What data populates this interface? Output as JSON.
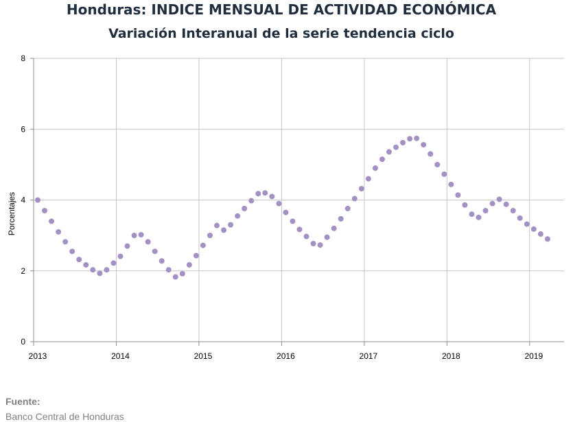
{
  "chart_data": {
    "type": "scatter",
    "title": "Honduras: INDICE MENSUAL DE ACTIVIDAD ECONÓMICA",
    "subtitle": "Variación Interanual de la serie tendencia ciclo",
    "xlabel": "",
    "ylabel": "Porcentajes",
    "x_ticks": [
      "2013",
      "2014",
      "2015",
      "2016",
      "2017",
      "2018",
      "2019"
    ],
    "y_ticks": [
      "0",
      "2",
      "4",
      "6",
      "8"
    ],
    "xlim": [
      "2013-01",
      "2019-06"
    ],
    "ylim": [
      0,
      8
    ],
    "grid": true,
    "legend": "none",
    "marker_color": "#a391c4",
    "x": [
      "2013-01",
      "2013-02",
      "2013-03",
      "2013-04",
      "2013-05",
      "2013-06",
      "2013-07",
      "2013-08",
      "2013-09",
      "2013-10",
      "2013-11",
      "2013-12",
      "2014-01",
      "2014-02",
      "2014-03",
      "2014-04",
      "2014-05",
      "2014-06",
      "2014-07",
      "2014-08",
      "2014-09",
      "2014-10",
      "2014-11",
      "2014-12",
      "2015-01",
      "2015-02",
      "2015-03",
      "2015-04",
      "2015-05",
      "2015-06",
      "2015-07",
      "2015-08",
      "2015-09",
      "2015-10",
      "2015-11",
      "2015-12",
      "2016-01",
      "2016-02",
      "2016-03",
      "2016-04",
      "2016-05",
      "2016-06",
      "2016-07",
      "2016-08",
      "2016-09",
      "2016-10",
      "2016-11",
      "2016-12",
      "2017-01",
      "2017-02",
      "2017-03",
      "2017-04",
      "2017-05",
      "2017-06",
      "2017-07",
      "2017-08",
      "2017-09",
      "2017-10",
      "2017-11",
      "2017-12",
      "2018-01",
      "2018-02",
      "2018-03",
      "2018-04",
      "2018-05",
      "2018-06",
      "2018-07",
      "2018-08",
      "2018-09",
      "2018-10",
      "2018-11",
      "2018-12",
      "2019-01",
      "2019-02",
      "2019-03"
    ],
    "values": [
      4.0,
      3.7,
      3.4,
      3.1,
      2.82,
      2.55,
      2.32,
      2.17,
      2.03,
      1.93,
      2.03,
      2.22,
      2.41,
      2.7,
      3.0,
      3.02,
      2.82,
      2.55,
      2.28,
      2.03,
      1.83,
      1.92,
      2.17,
      2.43,
      2.72,
      3.0,
      3.28,
      3.15,
      3.3,
      3.55,
      3.76,
      3.98,
      4.18,
      4.2,
      4.1,
      3.9,
      3.65,
      3.4,
      3.17,
      2.97,
      2.77,
      2.73,
      2.95,
      3.2,
      3.47,
      3.76,
      4.04,
      4.32,
      4.6,
      4.9,
      5.15,
      5.36,
      5.49,
      5.62,
      5.73,
      5.74,
      5.56,
      5.3,
      5.0,
      4.73,
      4.44,
      4.14,
      3.86,
      3.6,
      3.51,
      3.7,
      3.9,
      4.02,
      3.88,
      3.7,
      3.49,
      3.32,
      3.18,
      3.04,
      2.9
    ]
  },
  "source": {
    "label": "Fuente:",
    "value": "Banco Central de Honduras"
  }
}
